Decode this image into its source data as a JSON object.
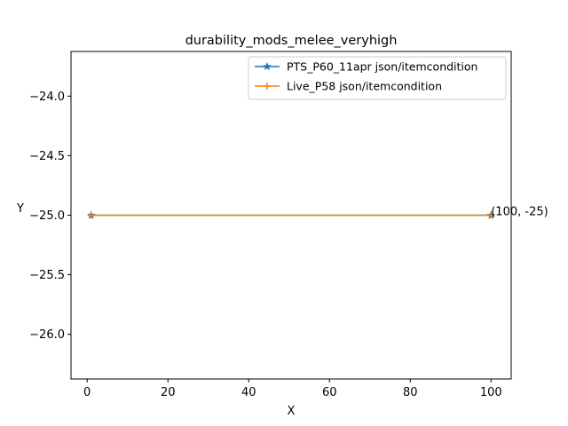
{
  "chart_data": {
    "type": "line",
    "title": "durability_mods_melee_veryhigh",
    "xlabel": "X",
    "ylabel": "Y",
    "xlim": [
      -4,
      105
    ],
    "ylim": [
      -26.375,
      -23.625
    ],
    "xticks": [
      0,
      20,
      40,
      60,
      80,
      100
    ],
    "xtick_labels": [
      "0",
      "20",
      "40",
      "60",
      "80",
      "100"
    ],
    "yticks": [
      -24.0,
      -24.5,
      -25.0,
      -25.5,
      -26.0
    ],
    "ytick_labels": [
      "−24.0",
      "−24.5",
      "−25.0",
      "−25.5",
      "−26.0"
    ],
    "grid": false,
    "legend_position": "top-right",
    "series": [
      {
        "name": "PTS_P60_11apr json/itemcondition",
        "color": "#1f77b4",
        "marker": "star",
        "x": [
          1,
          100
        ],
        "y": [
          -25,
          -25
        ]
      },
      {
        "name": "Live_P58 json/itemcondition",
        "color": "#ff7f0e",
        "marker": "plus",
        "x": [
          1,
          100
        ],
        "y": [
          -25,
          -25
        ]
      }
    ],
    "annotations": [
      {
        "text": "(100, -25)",
        "x": 100,
        "y": -25
      }
    ]
  }
}
